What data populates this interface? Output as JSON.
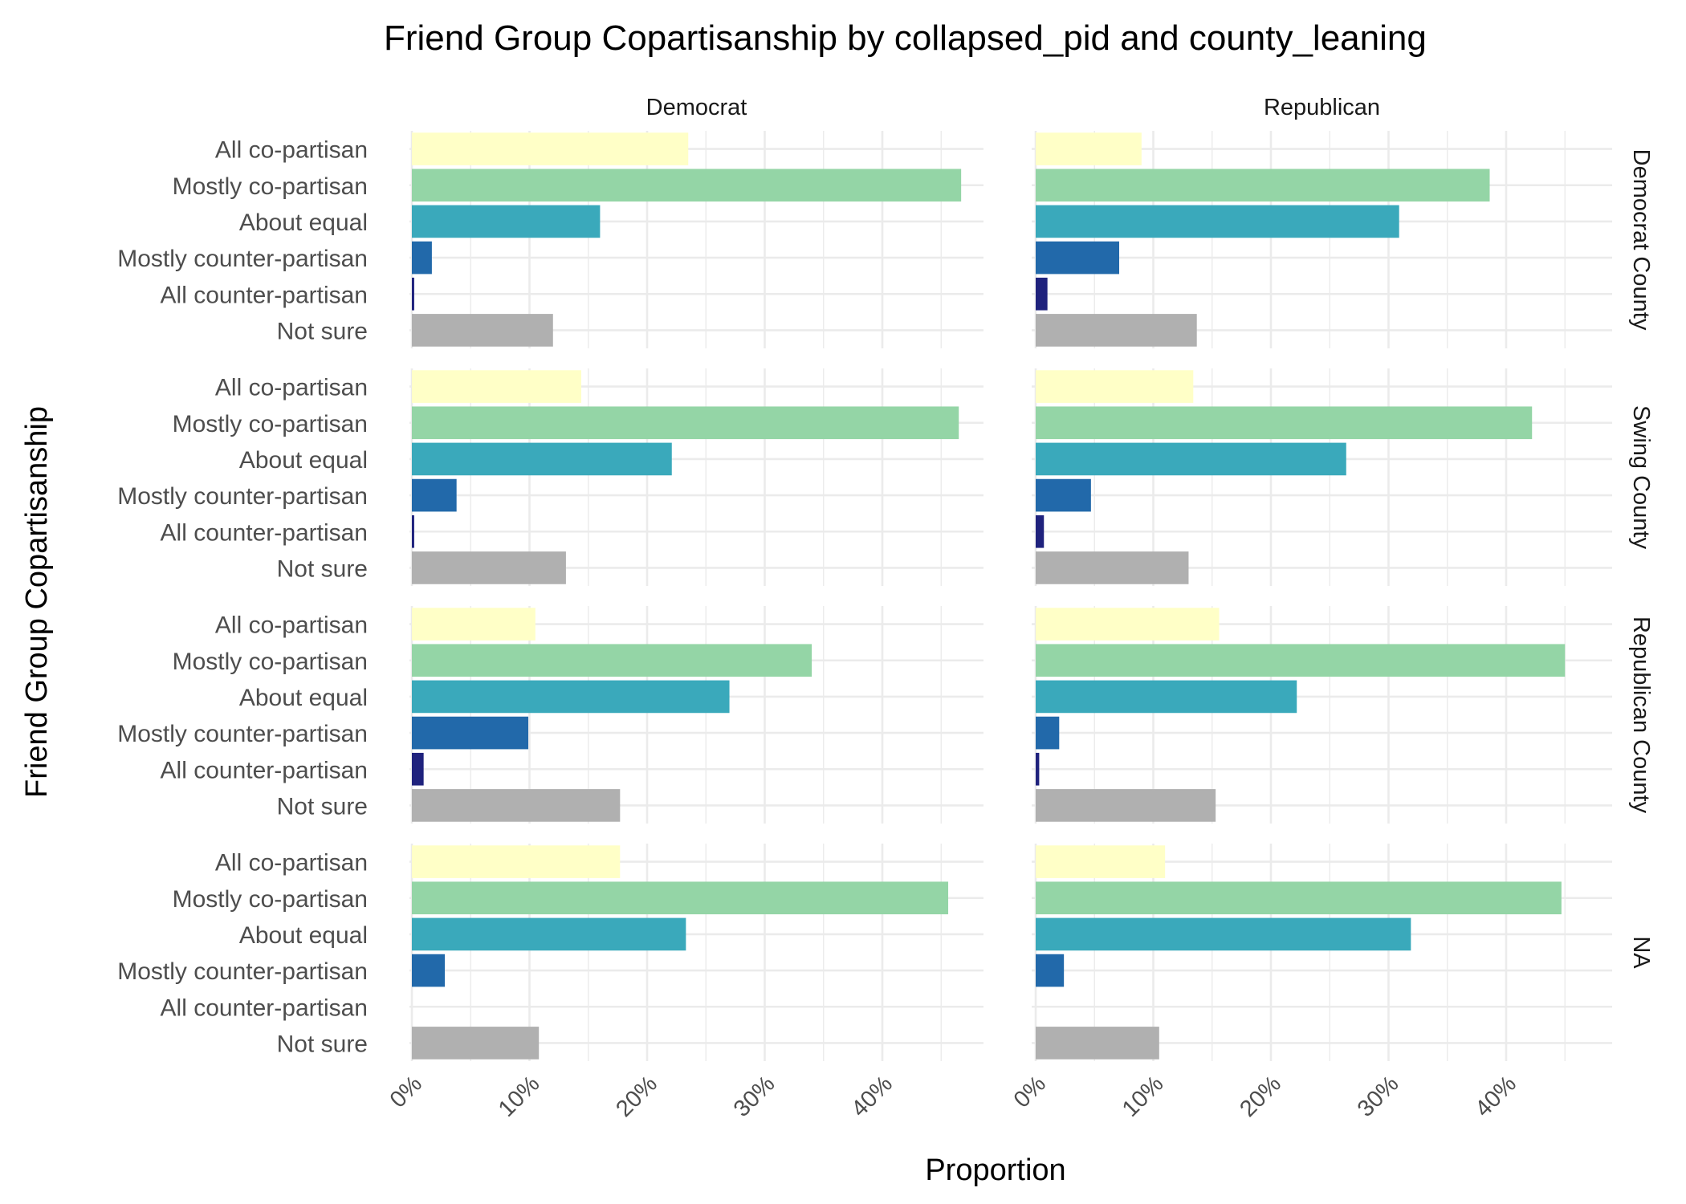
{
  "chart_data": {
    "type": "bar",
    "title": "Friend Group Copartisanship by collapsed_pid and county_leaning",
    "xlabel": "Proportion",
    "ylabel": "Friend Group Copartisanship",
    "xlim": [
      0,
      0.49
    ],
    "x_ticks": [
      "0%",
      "10%",
      "20%",
      "30%",
      "40%"
    ],
    "categories": [
      "All co-partisan",
      "Mostly co-partisan",
      "About equal",
      "Mostly counter-partisan",
      "All counter-partisan",
      "Not sure"
    ],
    "category_colors": [
      "#ffffc7",
      "#94d5a6",
      "#3aa9bb",
      "#2269aa",
      "#1f227d",
      "#b0b0b0"
    ],
    "facet_columns": [
      "Democrat",
      "Republican"
    ],
    "facet_rows": [
      "Democrat County",
      "Swing County",
      "Republican County",
      "NA"
    ],
    "panels": [
      {
        "row": "Democrat County",
        "column": "Democrat",
        "values": [
          0.235,
          0.467,
          0.16,
          0.017,
          0.002,
          0.12
        ]
      },
      {
        "row": "Democrat County",
        "column": "Republican",
        "values": [
          0.09,
          0.386,
          0.309,
          0.071,
          0.01,
          0.137
        ]
      },
      {
        "row": "Swing County",
        "column": "Democrat",
        "values": [
          0.144,
          0.465,
          0.221,
          0.038,
          0.002,
          0.131
        ]
      },
      {
        "row": "Swing County",
        "column": "Republican",
        "values": [
          0.134,
          0.422,
          0.264,
          0.047,
          0.007,
          0.13
        ]
      },
      {
        "row": "Republican County",
        "column": "Democrat",
        "values": [
          0.105,
          0.34,
          0.27,
          0.099,
          0.01,
          0.177
        ]
      },
      {
        "row": "Republican County",
        "column": "Republican",
        "values": [
          0.156,
          0.45,
          0.222,
          0.02,
          0.003,
          0.153
        ]
      },
      {
        "row": "NA",
        "column": "Democrat",
        "values": [
          0.177,
          0.456,
          0.233,
          0.028,
          null,
          0.108
        ]
      },
      {
        "row": "NA",
        "column": "Republican",
        "values": [
          0.11,
          0.447,
          0.319,
          0.024,
          null,
          0.105
        ]
      }
    ]
  }
}
